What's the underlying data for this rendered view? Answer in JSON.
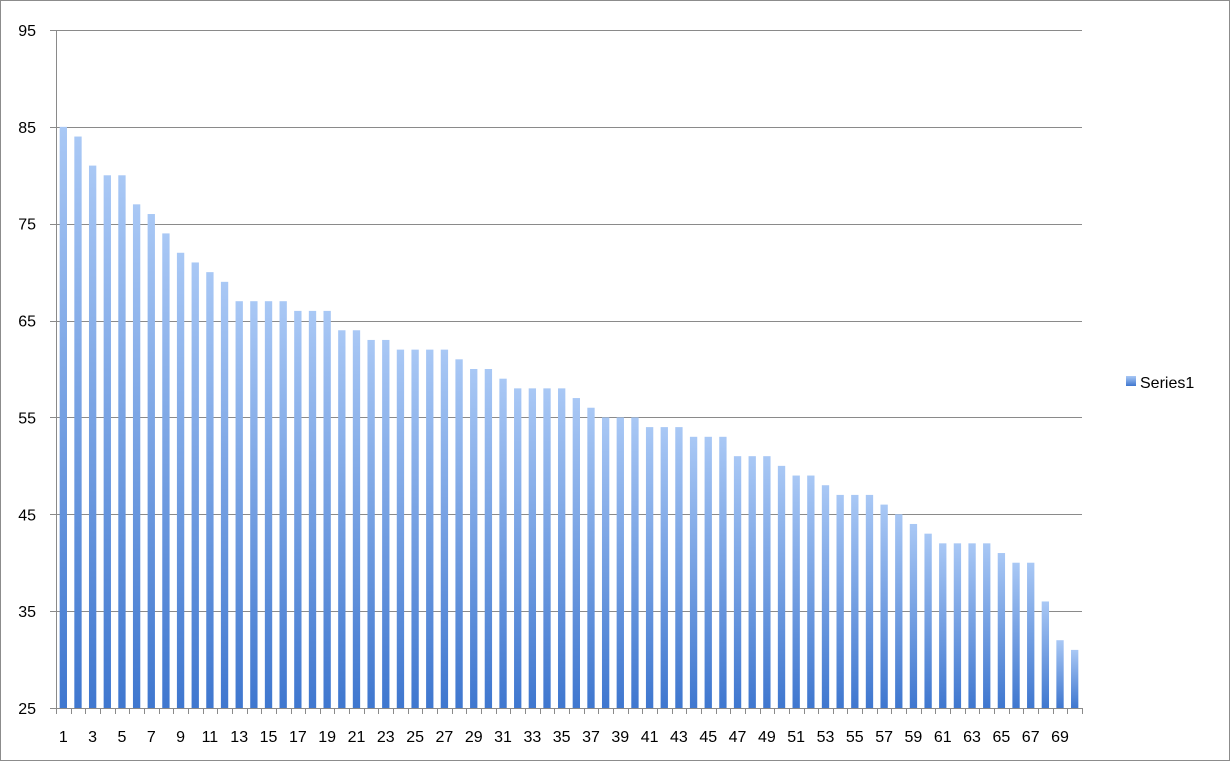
{
  "chart_data": {
    "type": "bar",
    "title": "",
    "xlabel": "",
    "ylabel": "",
    "ylim": [
      25,
      95
    ],
    "y_ticks": [
      25,
      35,
      45,
      55,
      65,
      75,
      85,
      95
    ],
    "x_tick_labels": [
      "1",
      "3",
      "5",
      "7",
      "9",
      "11",
      "13",
      "15",
      "17",
      "19",
      "21",
      "23",
      "25",
      "27",
      "29",
      "31",
      "33",
      "35",
      "37",
      "39",
      "41",
      "43",
      "45",
      "47",
      "49",
      "51",
      "53",
      "55",
      "57",
      "59",
      "61",
      "63",
      "65",
      "67",
      "69"
    ],
    "categories": [
      1,
      2,
      3,
      4,
      5,
      6,
      7,
      8,
      9,
      10,
      11,
      12,
      13,
      14,
      15,
      16,
      17,
      18,
      19,
      20,
      21,
      22,
      23,
      24,
      25,
      26,
      27,
      28,
      29,
      30,
      31,
      32,
      33,
      34,
      35,
      36,
      37,
      38,
      39,
      40,
      41,
      42,
      43,
      44,
      45,
      46,
      47,
      48,
      49,
      50,
      51,
      52,
      53,
      54,
      55,
      56,
      57,
      58,
      59,
      60,
      61,
      62,
      63,
      64,
      65,
      66,
      67,
      68,
      69,
      70
    ],
    "series": [
      {
        "name": "Series1",
        "color": "#4a7fd4",
        "values": [
          85,
          84,
          81,
          80,
          80,
          77,
          76,
          74,
          72,
          71,
          70,
          69,
          67,
          67,
          67,
          67,
          66,
          66,
          66,
          64,
          64,
          63,
          63,
          62,
          62,
          62,
          62,
          61,
          60,
          60,
          59,
          58,
          58,
          58,
          58,
          57,
          56,
          55,
          55,
          55,
          54,
          54,
          54,
          53,
          53,
          53,
          51,
          51,
          51,
          50,
          49,
          49,
          48,
          47,
          47,
          47,
          46,
          45,
          44,
          43,
          42,
          42,
          42,
          42,
          41,
          40,
          40,
          36,
          32,
          31
        ]
      }
    ],
    "grid": true,
    "legend_position": "right"
  }
}
